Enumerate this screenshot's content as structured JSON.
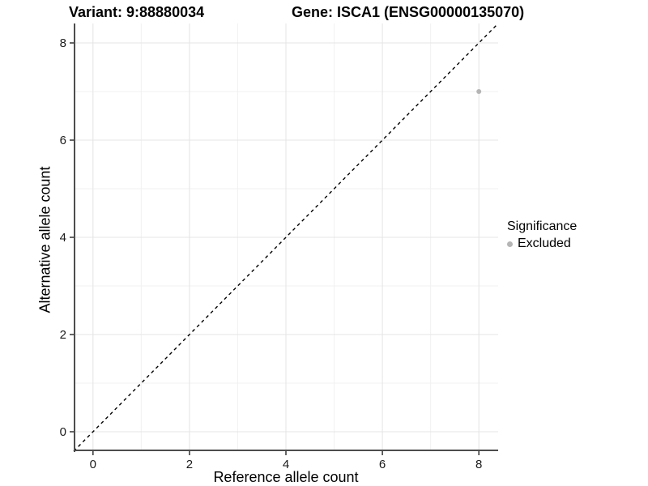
{
  "title": {
    "variant": "Variant: 9:88880034",
    "gene": "Gene: ISCA1 (ENSG00000135070)"
  },
  "axes": {
    "x": {
      "label": "Reference allele count",
      "ticks": [
        0,
        2,
        4,
        6,
        8
      ],
      "minor_ticks": [
        1,
        3,
        5,
        7
      ],
      "range": [
        -0.4,
        8.4
      ]
    },
    "y": {
      "label": "Alternative allele count",
      "ticks": [
        0,
        2,
        4,
        6,
        8
      ],
      "minor_ticks": [
        1,
        3,
        5,
        7
      ],
      "range": [
        -0.4,
        8.4
      ]
    }
  },
  "legend": {
    "title": "Significance",
    "items": [
      {
        "label": "Excluded",
        "color": "#b5b5b5"
      }
    ]
  },
  "colors": {
    "background": "#ffffff",
    "grid_major": "#e4e4e4",
    "grid_minor": "#f1f1f1",
    "axis": "#4d4d4d",
    "tick": "#333333",
    "tick_label": "#1a1a1a",
    "ref_line": "#000000",
    "point": "#b5b5b5"
  },
  "chart_data": {
    "type": "scatter",
    "title": "Variant: 9:88880034   Gene: ISCA1 (ENSG00000135070)",
    "xlabel": "Reference allele count",
    "ylabel": "Alternative allele count",
    "xlim": [
      -0.4,
      8.4
    ],
    "ylim": [
      -0.4,
      8.4
    ],
    "x_ticks": [
      0,
      2,
      4,
      6,
      8
    ],
    "y_ticks": [
      0,
      2,
      4,
      6,
      8
    ],
    "grid": "major+minor",
    "legend_position": "right",
    "series": [
      {
        "name": "Excluded",
        "color": "#b5b5b5",
        "points": [
          {
            "x": 8,
            "y": 7
          }
        ]
      }
    ],
    "reference_line": {
      "type": "identity y=x",
      "style": "dashed",
      "color": "#000000"
    }
  }
}
